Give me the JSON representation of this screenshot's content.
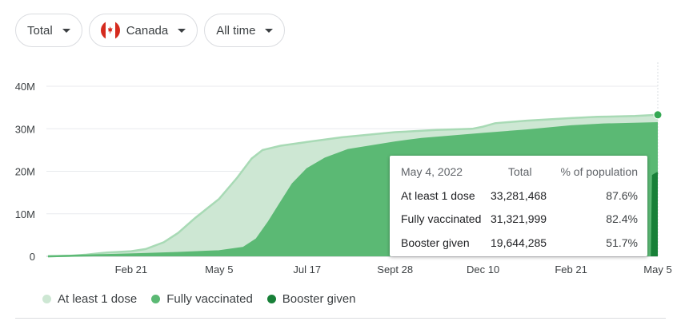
{
  "filters": {
    "metric": "Total",
    "region": "Canada",
    "period": "All time"
  },
  "tooltip": {
    "date": "May 4, 2022",
    "col_total": "Total",
    "col_pct": "% of population",
    "rows": [
      {
        "label": "At least 1 dose",
        "total": "33,281,468",
        "pct": "87.6%"
      },
      {
        "label": "Fully vaccinated",
        "total": "31,321,999",
        "pct": "82.4%"
      },
      {
        "label": "Booster given",
        "total": "19,644,285",
        "pct": "51.7%"
      }
    ]
  },
  "legend": [
    {
      "label": "At least 1 dose",
      "color": "#cde7d3"
    },
    {
      "label": "Fully vaccinated",
      "color": "#5bb974"
    },
    {
      "label": "Booster given",
      "color": "#188038"
    }
  ],
  "chart_data": {
    "type": "area",
    "title": "",
    "xlabel": "",
    "ylabel": "",
    "ylim": [
      0,
      40000000
    ],
    "yticks": [
      {
        "value": 40000000,
        "label": "40M"
      },
      {
        "value": 30000000,
        "label": "30M"
      },
      {
        "value": 20000000,
        "label": "20M"
      },
      {
        "value": 10000000,
        "label": "10M"
      },
      {
        "value": 0,
        "label": "0"
      }
    ],
    "xticks": [
      {
        "date": "2021-02-21",
        "label": "Feb 21"
      },
      {
        "date": "2021-05-05",
        "label": "May 5"
      },
      {
        "date": "2021-07-17",
        "label": "Jul 17"
      },
      {
        "date": "2021-09-28",
        "label": "Sept 28"
      },
      {
        "date": "2021-12-10",
        "label": "Dec 10"
      },
      {
        "date": "2022-02-21",
        "label": "Feb 21"
      },
      {
        "date": "2022-05-05",
        "label": "May 5"
      }
    ],
    "grid": true,
    "legend_position": "bottom",
    "series": [
      {
        "name": "At least 1 dose",
        "color": "#cde7d3",
        "line_color": "#a8dab5",
        "points": [
          [
            "2020-12-14",
            0
          ],
          [
            "2021-01-01",
            120000
          ],
          [
            "2021-01-15",
            400000
          ],
          [
            "2021-02-01",
            900000
          ],
          [
            "2021-02-21",
            1200000
          ],
          [
            "2021-03-05",
            1700000
          ],
          [
            "2021-03-20",
            3300000
          ],
          [
            "2021-04-01",
            5500000
          ],
          [
            "2021-04-15",
            9000000
          ],
          [
            "2021-05-05",
            13500000
          ],
          [
            "2021-05-20",
            18500000
          ],
          [
            "2021-06-01",
            23000000
          ],
          [
            "2021-06-10",
            25000000
          ],
          [
            "2021-06-25",
            26000000
          ],
          [
            "2021-07-17",
            26900000
          ],
          [
            "2021-08-15",
            28000000
          ],
          [
            "2021-09-28",
            29200000
          ],
          [
            "2021-11-01",
            29700000
          ],
          [
            "2021-12-01",
            30000000
          ],
          [
            "2021-12-10",
            30500000
          ],
          [
            "2021-12-20",
            31300000
          ],
          [
            "2022-01-15",
            31900000
          ],
          [
            "2022-02-21",
            32500000
          ],
          [
            "2022-03-15",
            32800000
          ],
          [
            "2022-04-15",
            33000000
          ],
          [
            "2022-05-04",
            33281468
          ]
        ]
      },
      {
        "name": "Fully vaccinated",
        "color": "#5bb974",
        "line_color": "#5bb974",
        "points": [
          [
            "2020-12-14",
            0
          ],
          [
            "2021-02-01",
            300000
          ],
          [
            "2021-03-01",
            500000
          ],
          [
            "2021-04-01",
            800000
          ],
          [
            "2021-05-05",
            1200000
          ],
          [
            "2021-05-25",
            2000000
          ],
          [
            "2021-06-05",
            4000000
          ],
          [
            "2021-06-15",
            8000000
          ],
          [
            "2021-06-25",
            12500000
          ],
          [
            "2021-07-05",
            17000000
          ],
          [
            "2021-07-17",
            20500000
          ],
          [
            "2021-08-01",
            23000000
          ],
          [
            "2021-08-20",
            25000000
          ],
          [
            "2021-09-28",
            26800000
          ],
          [
            "2021-10-20",
            27600000
          ],
          [
            "2021-11-15",
            28200000
          ],
          [
            "2021-12-10",
            28800000
          ],
          [
            "2022-01-15",
            29600000
          ],
          [
            "2022-02-21",
            30600000
          ],
          [
            "2022-03-20",
            31000000
          ],
          [
            "2022-05-04",
            31321999
          ]
        ]
      },
      {
        "name": "Booster given",
        "color": "#188038",
        "line_color": "#188038",
        "points": [
          [
            "2022-04-29",
            0
          ],
          [
            "2022-04-30",
            19000000
          ],
          [
            "2022-05-04",
            19644285
          ]
        ]
      }
    ]
  }
}
